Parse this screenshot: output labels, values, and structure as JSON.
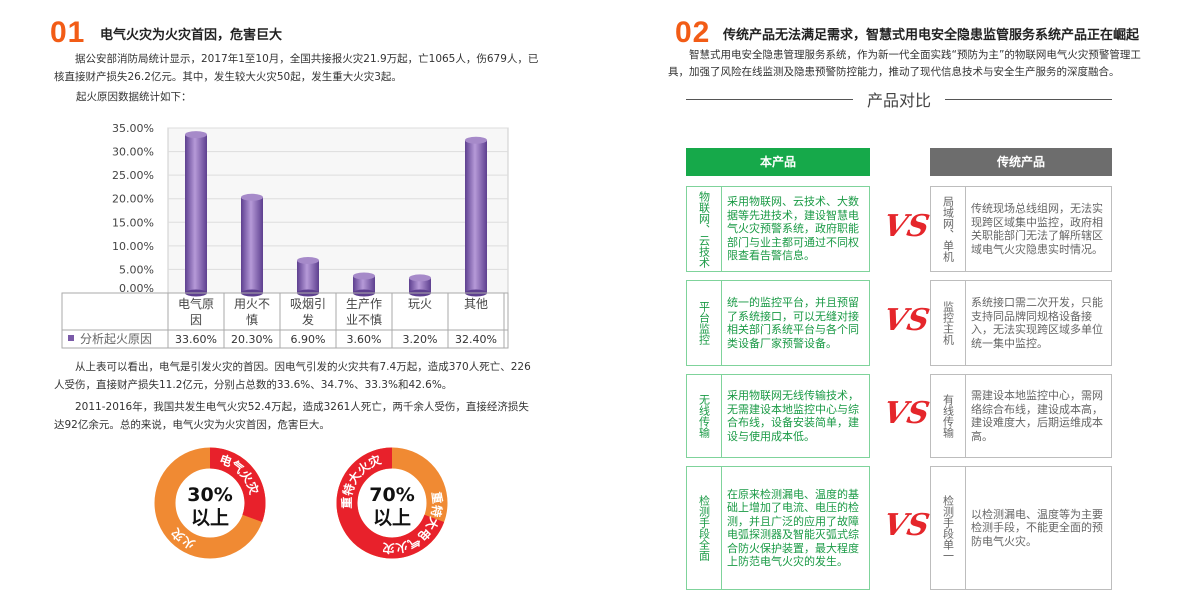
{
  "left": {
    "number": "01",
    "title": "电气火灾为火灾首因，危害巨大",
    "para1": "据公安部消防局统计显示，2017年1至10月，全国共接报火灾21.9万起，亡1065人，伤679人，已核直接财产损失26.2亿元。其中，发生较大火灾50起，发生重大火灾3起。",
    "para2": "起火原因数据统计如下：",
    "para3": "从上表可以看出，电气是引发火灾的首因。因电气引发的火灾共有7.4万起，造成370人死亡、226人受伤，直接财产损失11.2亿元，分别占总数的33.6%、34.7%、33.3%和42.6%。",
    "para4": "2011-2016年，我国共发生电气火灾52.4万起，造成3261人死亡，两千余人受伤，直接经济损失达92亿余元。总的来说，电气火灾为火灾首因，危害巨大。",
    "donut1": {
      "center": "30%",
      "center2": "以上",
      "red_label": "电气火灾",
      "orange_label": "火灾",
      "value": 30,
      "colors": {
        "red": "#e8212b",
        "orange": "#f08a33"
      }
    },
    "donut2": {
      "center": "70%",
      "center2": "以上",
      "red_label": "重特大电气火灾",
      "orange_label": "重特大火灾",
      "value": 70
    }
  },
  "chart_data": {
    "type": "bar",
    "categories": [
      "电气原因",
      "用火不慎",
      "吸烟引发",
      "生产作业不慎",
      "玩火",
      "其他"
    ],
    "series": [
      {
        "name": "分析起火原因",
        "values": [
          33.6,
          20.3,
          6.9,
          3.6,
          3.2,
          32.4
        ],
        "labels": [
          "33.60%",
          "20.30%",
          "6.90%",
          "3.60%",
          "3.20%",
          "32.40%"
        ],
        "color": "#8a6cb5"
      }
    ],
    "yticks": [
      "0.00%",
      "5.00%",
      "10.00%",
      "15.00%",
      "20.00%",
      "25.00%",
      "30.00%",
      "35.00%"
    ],
    "ylim": [
      0,
      35
    ],
    "grid": true,
    "legend": "table-bottom"
  },
  "right": {
    "number": "02",
    "title": "传统产品无法满足需求，智慧式用电安全隐患监管服务系统产品正在崛起",
    "para": "智慧式用电安全隐患管理服务系统，作为新一代全面实践“预防为主”的物联网电气火灾预警管理工具，加强了风险在线监测及隐患预警防控能力，推动了现代信息技术与安全生产服务的深度融合。",
    "compare_title": "产品对比",
    "our_header": "本产品",
    "trad_header": "传统产品",
    "vs": "VS",
    "rows": [
      {
        "our_label": "物联网、云技术",
        "our_text": "采用物联网、云技术、大数据等先进技术，建设智慧电气火灾预警系统，政府职能部门与业主都可通过不同权限查看告警信息。",
        "trad_label": "局域网、单机",
        "trad_text": "传统现场总线组网，无法实现跨区域集中监控，政府相关职能部门无法了解所辖区域电气火灾隐患实时情况。"
      },
      {
        "our_label": "平台监控",
        "our_text": "统一的监控平台，并且预留了系统接口，可以无缝对接相关部门系统平台与各个同类设备厂家预警设备。",
        "trad_label": "监控主机",
        "trad_text": "系统接口需二次开发，只能支持同品牌同规格设备接入，无法实现跨区域多单位统一集中监控。"
      },
      {
        "our_label": "无线传输",
        "our_text": "采用物联网无线传输技术，无需建设本地监控中心与综合布线，设备安装简单，建设与使用成本低。",
        "trad_label": "有线传输",
        "trad_text": "需建设本地监控中心，需网络综合布线，建设成本高，建设难度大，后期运维成本高。"
      },
      {
        "our_label": "检测手段全面",
        "our_text": "在原来检测漏电、温度的基础上增加了电流、电压的检测，并且广泛的应用了故障电弧探测器及智能灭弧式综合防火保护装置，最大程度上防范电气火灾的发生。",
        "trad_label": "检测手段单一",
        "trad_text": "以检测漏电、温度等为主要检测手段，不能更全面的预防电气火灾。"
      }
    ]
  }
}
